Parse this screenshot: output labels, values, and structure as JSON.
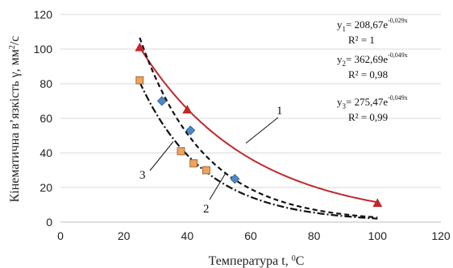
{
  "chart_data": {
    "type": "scatter",
    "xlabel": "Температура t, ",
    "xlabel_sup": "0",
    "xlabel_unit": "C",
    "ylabel": "Кінематична в’язкість γ, мм",
    "ylabel_sup": "2",
    "ylabel_unit": "/c",
    "xlim": [
      0,
      120
    ],
    "ylim": [
      0,
      120
    ],
    "xticks": [
      "0",
      "20",
      "40",
      "60",
      "80",
      "100",
      "120"
    ],
    "yticks": [
      "0",
      "20",
      "40",
      "60",
      "80",
      "100",
      "120"
    ],
    "grid": "horizontal",
    "series": [
      {
        "id": "1",
        "marker": "triangle",
        "marker_color": "#c0282a",
        "line_color": "#c0282a",
        "line_style": "solid",
        "points": [
          [
            25,
            101
          ],
          [
            40,
            65
          ],
          [
            100,
            11
          ]
        ],
        "fit": {
          "a": 208.67,
          "b": -0.029,
          "x_start": 25,
          "x_end": 100
        },
        "equation": {
          "y_label": "y",
          "y_sub": "1",
          "coef": "= 208,67e",
          "exp": "-0,029x",
          "r2": "R² = 1"
        }
      },
      {
        "id": "2",
        "marker": "diamond",
        "marker_color": "#4f86c6",
        "line_color": "#111111",
        "line_style": "dash",
        "points": [
          [
            32,
            70
          ],
          [
            41,
            53
          ],
          [
            55,
            25
          ]
        ],
        "fit": {
          "a": 362.69,
          "b": -0.049,
          "x_start": 25,
          "x_end": 100
        },
        "equation": {
          "y_label": "y",
          "y_sub": "2",
          "coef": "= 362,69e",
          "exp": "-0,049x",
          "r2": "R² = 0,98"
        }
      },
      {
        "id": "3",
        "marker": "square",
        "marker_color": "#f0a260",
        "line_color": "#111111",
        "line_style": "dashdot",
        "points": [
          [
            25,
            82
          ],
          [
            38,
            41
          ],
          [
            42,
            34
          ],
          [
            46,
            30
          ]
        ],
        "fit": {
          "a": 275.47,
          "b": -0.049,
          "x_start": 25,
          "x_end": 100
        },
        "equation": {
          "y_label": "y",
          "y_sub": "3",
          "coef": "= 275,47e",
          "exp": "-0,049x",
          "r2": "R² = 0,99"
        }
      }
    ],
    "curve_labels": [
      "1",
      "2",
      "3"
    ]
  }
}
